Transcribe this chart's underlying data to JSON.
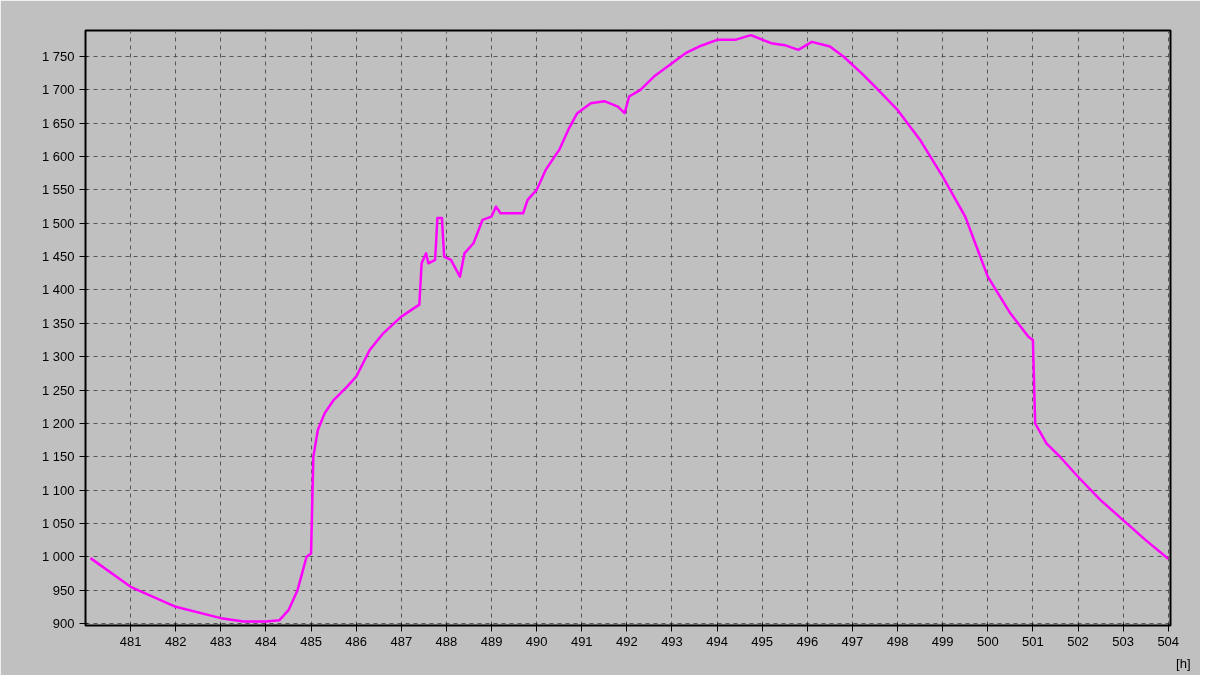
{
  "chart_data": {
    "type": "line",
    "xlabel": "[h]",
    "x": [
      480.11,
      481,
      482,
      483,
      483.5,
      484,
      484.3,
      484.5,
      484.7,
      484.9,
      485.0,
      485.05,
      485.15,
      485.3,
      485.5,
      485.8,
      486,
      486.3,
      486.6,
      487,
      487.4,
      487.45,
      487.55,
      487.6,
      487.75,
      487.8,
      487.9,
      487.95,
      488.1,
      488.3,
      488.4,
      488.6,
      488.8,
      489,
      489.1,
      489.2,
      489.7,
      489.8,
      490,
      490.2,
      490.5,
      490.7,
      490.9,
      491.2,
      491.5,
      491.8,
      491.95,
      492.05,
      492.3,
      492.6,
      493,
      493.3,
      493.6,
      494,
      494.4,
      494.75,
      495.2,
      495.5,
      495.8,
      496.1,
      496.5,
      496.8,
      497.2,
      497.5,
      498,
      498.5,
      499,
      499.5,
      500,
      500.5,
      500.9,
      501.0,
      501.05,
      501.3,
      501.6,
      502,
      502.5,
      503,
      503.5,
      504
    ],
    "series": [
      {
        "color": "#ff00ff",
        "values": [
          998,
          955,
          925,
          908,
          903,
          903,
          905,
          920,
          950,
          1000,
          1005,
          1150,
          1190,
          1215,
          1235,
          1255,
          1270,
          1310,
          1335,
          1360,
          1378,
          1440,
          1455,
          1440,
          1445,
          1508,
          1508,
          1450,
          1445,
          1420,
          1455,
          1470,
          1505,
          1510,
          1525,
          1515,
          1515,
          1535,
          1550,
          1580,
          1610,
          1640,
          1665,
          1680,
          1683,
          1675,
          1665,
          1690,
          1700,
          1720,
          1740,
          1755,
          1765,
          1775,
          1775,
          1782,
          1770,
          1767,
          1760,
          1772,
          1765,
          1750,
          1725,
          1705,
          1670,
          1625,
          1570,
          1510,
          1420,
          1365,
          1330,
          1325,
          1200,
          1170,
          1150,
          1120,
          1085,
          1055,
          1025,
          997
        ]
      }
    ],
    "xlim": [
      480,
      504.05
    ],
    "ylim": [
      897,
      1789
    ],
    "xticks": [
      481,
      482,
      483,
      484,
      485,
      486,
      487,
      488,
      489,
      490,
      491,
      492,
      493,
      494,
      495,
      496,
      497,
      498,
      499,
      500,
      501,
      502,
      503,
      504
    ],
    "yticks": [
      900,
      950,
      {
        "value": 1000,
        "label": "1 000"
      },
      {
        "value": 1050,
        "label": "1 050"
      },
      {
        "value": 1100,
        "label": "1 100"
      },
      {
        "value": 1150,
        "label": "1 150"
      },
      {
        "value": 1200,
        "label": "1 200"
      },
      {
        "value": 1250,
        "label": "1 250"
      },
      {
        "value": 1300,
        "label": "1 300"
      },
      {
        "value": 1350,
        "label": "1 350"
      },
      {
        "value": 1400,
        "label": "1 400"
      },
      {
        "value": 1450,
        "label": "1 450"
      },
      {
        "value": 1500,
        "label": "1 500"
      },
      {
        "value": 1550,
        "label": "1 550"
      },
      {
        "value": 1600,
        "label": "1 600"
      },
      {
        "value": 1650,
        "label": "1 650"
      },
      {
        "value": 1700,
        "label": "1 700"
      },
      {
        "value": 1750,
        "label": "1 750"
      }
    ],
    "grid": true,
    "line_style": "solid"
  }
}
